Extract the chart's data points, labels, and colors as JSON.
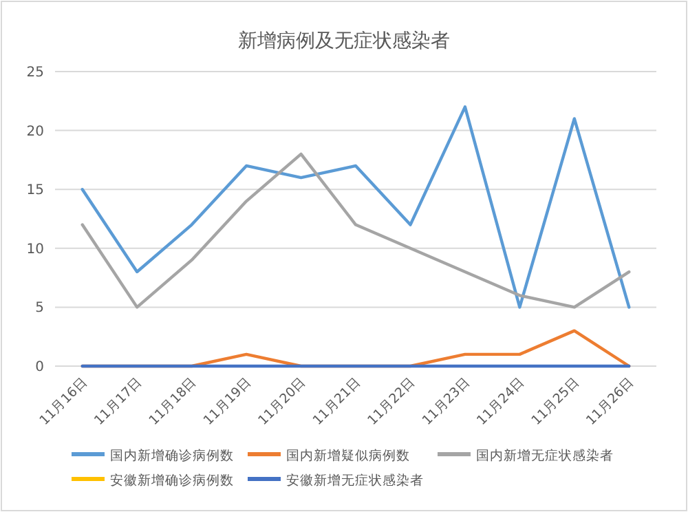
{
  "chart_data": {
    "type": "line",
    "title": "新增病例及无症状感染者",
    "categories": [
      "11月16日",
      "11月17日",
      "11月18日",
      "11月19日",
      "11月20日",
      "11月21日",
      "11月22日",
      "11月23日",
      "11月24日",
      "11月25日",
      "11月26日"
    ],
    "series": [
      {
        "name": "国内新增确诊病例数",
        "color": "#5b9bd5",
        "values": [
          15,
          8,
          12,
          17,
          16,
          17,
          12,
          22,
          5,
          21,
          5
        ]
      },
      {
        "name": "国内新增疑似病例数",
        "color": "#ed7d31",
        "values": [
          0,
          0,
          0,
          1,
          0,
          0,
          0,
          1,
          1,
          3,
          0
        ]
      },
      {
        "name": "国内新增无症状感染者",
        "color": "#a5a5a5",
        "values": [
          12,
          5,
          9,
          14,
          18,
          12,
          10,
          8,
          6,
          5,
          8
        ]
      },
      {
        "name": "安徽新增确诊病例数",
        "color": "#ffc000",
        "values": [
          null,
          null,
          null,
          null,
          null,
          null,
          null,
          null,
          null,
          null,
          null
        ]
      },
      {
        "name": "安徽新增无症状感染者",
        "color": "#4472c4",
        "values": [
          0,
          0,
          0,
          0,
          0,
          0,
          0,
          0,
          0,
          0,
          0
        ]
      }
    ],
    "ylim": [
      0,
      25
    ],
    "yticks": [
      0,
      5,
      10,
      15,
      20,
      25
    ],
    "grid": "y",
    "legend": "bottom",
    "marker": "none",
    "line_style": "solid"
  }
}
